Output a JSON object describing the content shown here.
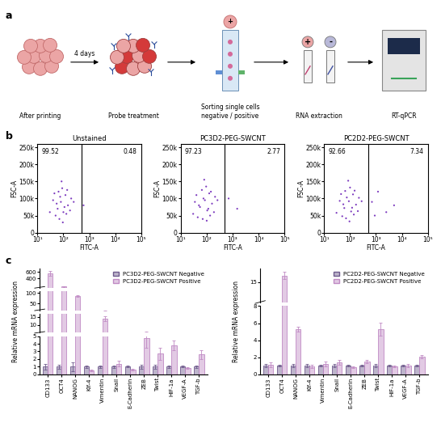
{
  "diagram": {
    "panel": "a",
    "steps": [
      "After printing",
      "Probe treatment",
      "Sorting single cells\nnegative / positive",
      "RNA extraction",
      "RT-qPCR"
    ],
    "arrow_label": "4 days",
    "signs": [
      "+",
      "-"
    ]
  },
  "chart_data": [
    {
      "type": "scatter",
      "panel": "b",
      "title": "Unstained",
      "x_label": "FITC-A",
      "y_label": "FSC-A",
      "log": "x",
      "xlim": [
        10,
        100000
      ],
      "xticks": [
        {
          "value": 10,
          "label": "10¹"
        },
        {
          "value": 100,
          "label": "10²"
        },
        {
          "value": 1000,
          "label": "10³"
        },
        {
          "value": 10000,
          "label": "10⁴"
        },
        {
          "value": 100000,
          "label": "10⁵"
        }
      ],
      "ylim": [
        0,
        260000
      ],
      "yticks": [
        0,
        {
          "value": 50000,
          "label": "50k"
        },
        {
          "value": 100000,
          "label": "100k"
        },
        {
          "value": 150000,
          "label": "150k"
        },
        {
          "value": 200000,
          "label": "200k"
        },
        {
          "value": 250000,
          "label": "250k"
        }
      ],
      "gate": 500,
      "gate_percentages": [
        99.52,
        0.48
      ],
      "color": "#7d3cbf",
      "x": [
        60,
        80,
        100,
        120,
        50,
        90,
        70,
        150,
        40,
        110,
        65,
        200,
        30,
        130,
        85,
        55,
        95,
        180,
        75,
        140,
        45,
        250,
        600
      ],
      "y": [
        70000,
        90000,
        60000,
        110000,
        50000,
        130000,
        40000,
        80000,
        95000,
        75000,
        120000,
        100000,
        60000,
        55000,
        150000,
        85000,
        30000,
        65000,
        105000,
        125000,
        115000,
        90000,
        80000
      ]
    },
    {
      "type": "scatter",
      "title": "PC3D2-PEG-SWCNT",
      "x_label": "FITC-A",
      "y_label": "FSC-A",
      "log": "x",
      "xlim": [
        10,
        100000
      ],
      "xticks": [
        {
          "value": 10,
          "label": "10¹"
        },
        {
          "value": 100,
          "label": "10²"
        },
        {
          "value": 1000,
          "label": "10³"
        },
        {
          "value": 10000,
          "label": "10⁴"
        },
        {
          "value": 100000,
          "label": "10⁵"
        }
      ],
      "ylim": [
        0,
        260000
      ],
      "yticks": [
        0,
        {
          "value": 50000,
          "label": "50k"
        },
        {
          "value": 100000,
          "label": "100k"
        },
        {
          "value": 150000,
          "label": "150k"
        },
        {
          "value": 200000,
          "label": "200k"
        },
        {
          "value": 250000,
          "label": "250k"
        }
      ],
      "gate": 500,
      "gate_percentages": [
        97.23,
        2.77
      ],
      "color": "#7d3cbf",
      "x": [
        55,
        85,
        105,
        125,
        45,
        95,
        70,
        160,
        35,
        115,
        65,
        210,
        30,
        135,
        80,
        50,
        100,
        190,
        75,
        145,
        40,
        260,
        700,
        1500
      ],
      "y": [
        75000,
        95000,
        65000,
        115000,
        45000,
        135000,
        40000,
        85000,
        90000,
        70000,
        125000,
        105000,
        55000,
        50000,
        155000,
        80000,
        35000,
        60000,
        100000,
        120000,
        110000,
        95000,
        100000,
        70000
      ]
    },
    {
      "type": "scatter",
      "title": "PC2D2-PEG-SWCNT",
      "x_label": "FITC-A",
      "y_label": "FSC-A",
      "log": "x",
      "xlim": [
        10,
        100000
      ],
      "xticks": [
        {
          "value": 10,
          "label": "10¹"
        },
        {
          "value": 100,
          "label": "10²"
        },
        {
          "value": 1000,
          "label": "10³"
        },
        {
          "value": 10000,
          "label": "10⁴"
        },
        {
          "value": 100000,
          "label": "10⁵"
        }
      ],
      "ylim": [
        0,
        260000
      ],
      "yticks": [
        0,
        {
          "value": 50000,
          "label": "50k"
        },
        {
          "value": 100000,
          "label": "100k"
        },
        {
          "value": 150000,
          "label": "150k"
        },
        {
          "value": 200000,
          "label": "200k"
        },
        {
          "value": 250000,
          "label": "250k"
        }
      ],
      "gate": 500,
      "gate_percentages": [
        92.66,
        7.34
      ],
      "color": "#7d3cbf",
      "x": [
        60,
        90,
        110,
        130,
        50,
        100,
        70,
        170,
        40,
        120,
        65,
        220,
        30,
        140,
        85,
        55,
        95,
        200,
        75,
        150,
        45,
        280,
        700,
        1200,
        2500,
        900,
        5000
      ],
      "y": [
        72000,
        92000,
        62000,
        112000,
        48000,
        132000,
        42000,
        82000,
        93000,
        73000,
        122000,
        102000,
        58000,
        53000,
        152000,
        83000,
        33000,
        63000,
        103000,
        123000,
        113000,
        92000,
        90000,
        120000,
        60000,
        50000,
        80000
      ]
    },
    {
      "type": "bar",
      "panel": "c",
      "y_label": "Relative mRNA expression",
      "legend": "upper right",
      "categories": [
        "CD133",
        "OCT4",
        "NANOG",
        "Klf-4",
        "Vimentin",
        "Snail",
        "E-Cadherin",
        "ZEB",
        "Twist",
        "HIF-1a",
        "VEGF-A",
        "TGF-b"
      ],
      "series": [
        {
          "name": "PC3D2-PEG-SWCNT Negative",
          "color": "#6e5a8c",
          "values": [
            1.0,
            1.0,
            1.0,
            1.0,
            1.0,
            1.0,
            1.0,
            1.0,
            1.0,
            1.0,
            1.0,
            1.0
          ],
          "errors": [
            0.4,
            0.3,
            0.6,
            0.2,
            0.2,
            0.2,
            0.1,
            0.3,
            0.3,
            0.2,
            0.1,
            0.2
          ]
        },
        {
          "name": "PC3D2-PEG-SWCNT Positive",
          "color": "#c08ac4",
          "values": [
            550,
            150,
            85,
            0.5,
            14,
            1.4,
            0.6,
            4.7,
            2.7,
            3.8,
            0.8,
            2.6
          ],
          "errors": [
            80,
            10,
            4,
            0.1,
            1.5,
            0.4,
            0.1,
            1.2,
            0.8,
            0.6,
            0.1,
            0.6
          ]
        }
      ],
      "y_segments": [
        {
          "ylim": [
            0,
            5
          ],
          "yticks": [
            0,
            1,
            2,
            3,
            4,
            5
          ]
        },
        {
          "ylim": [
            5,
            17
          ],
          "yticks": [
            10,
            15
          ]
        },
        {
          "ylim": [
            17,
            110
          ],
          "yticks": [
            50,
            100
          ]
        },
        {
          "ylim": [
            110,
            700
          ],
          "yticks": [
            400,
            600
          ]
        }
      ]
    },
    {
      "type": "bar",
      "y_label": "Relative mRNA expression",
      "legend": "upper right",
      "categories": [
        "CD133",
        "OCT4",
        "NANOG",
        "Klf-4",
        "Vimentin",
        "Snail",
        "E-Cadherin",
        "ZEB",
        "Twist",
        "HIF-1a",
        "VEGF-A",
        "TGF-b"
      ],
      "series": [
        {
          "name": "PC2D2-PEG-SWCNT Negative",
          "color": "#6e5a8c",
          "values": [
            1.0,
            1.0,
            1.0,
            1.0,
            1.0,
            1.0,
            1.0,
            1.0,
            1.0,
            1.0,
            1.0,
            1.0
          ],
          "errors": [
            0.2,
            0.1,
            0.2,
            0.2,
            0.1,
            0.2,
            0.1,
            0.1,
            0.2,
            0.1,
            0.1,
            0.1
          ]
        },
        {
          "name": "PC2D2-PEG-SWCNT Positive",
          "color": "#c08ac4",
          "values": [
            1.1,
            16,
            5.3,
            0.9,
            1.2,
            1.4,
            0.8,
            1.5,
            5.3,
            0.9,
            1.0,
            2.1
          ],
          "errors": [
            0.3,
            0.5,
            0.3,
            0.2,
            0.3,
            0.3,
            0.1,
            0.2,
            0.8,
            0.1,
            0.2,
            0.2
          ]
        }
      ],
      "y_segments": [
        {
          "ylim": [
            0,
            8
          ],
          "yticks": [
            0,
            2,
            4,
            6,
            8
          ]
        },
        {
          "ylim": [
            12,
            17
          ],
          "yticks": [
            15
          ]
        }
      ]
    }
  ]
}
